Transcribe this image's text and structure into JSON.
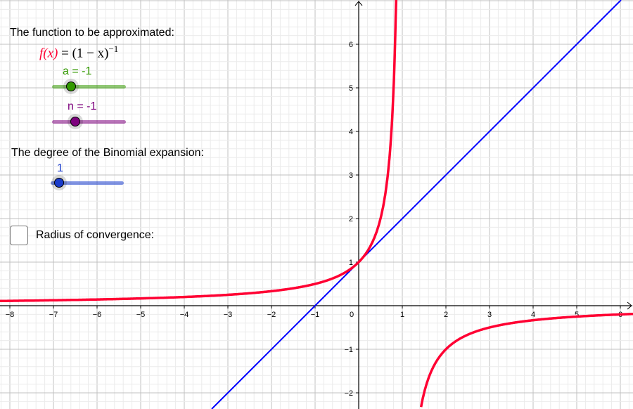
{
  "heading_function": "The function to be approximated:",
  "formula": {
    "lhs": "f(x)",
    "eq": " = (1 − x)",
    "exp": "−1"
  },
  "sliders": [
    {
      "label": "a = -1",
      "value": -1,
      "color": "#339900",
      "fraction": 0.25
    },
    {
      "label": "n = -1",
      "value": -1,
      "color": "#7d007d",
      "fraction": 0.3
    },
    {
      "label": "1",
      "value": 1,
      "color": "#1a3ccc",
      "fraction": 0.0
    }
  ],
  "heading_degree": "The degree of the Binomial expansion:",
  "checkbox": {
    "label": "Radius of convergence:",
    "checked": false
  },
  "graph": {
    "xlim": [
      -8.2,
      6.3
    ],
    "ylim": [
      -2.37,
      7.0
    ],
    "x_ticks": [
      "−8",
      "−7",
      "−6",
      "−5",
      "−4",
      "−3",
      "−2",
      "−1",
      "0",
      "1",
      "2",
      "3",
      "4",
      "5",
      "6"
    ],
    "y_ticks": [
      "−2",
      "−1",
      "1",
      "2",
      "3",
      "4",
      "5",
      "6"
    ],
    "functions": [
      {
        "expr": "f(x) = (1 - x)^-1",
        "color": "#ff0033"
      },
      {
        "expr": "y = 1 + x",
        "color": "#0000ff"
      }
    ]
  }
}
